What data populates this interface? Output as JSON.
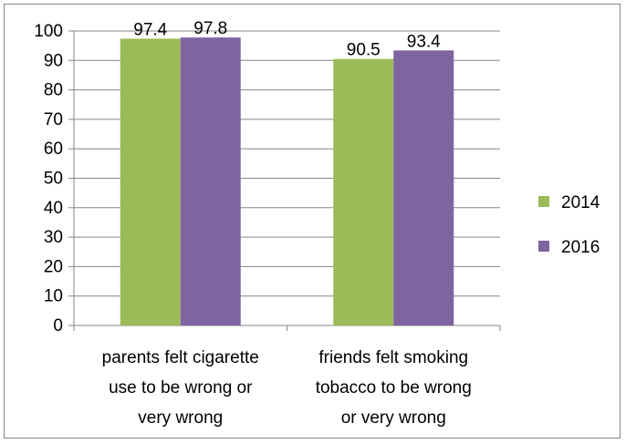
{
  "chart_data": {
    "type": "bar",
    "categories": [
      [
        "parents felt cigarette",
        "use to be wrong or",
        "very wrong"
      ],
      [
        "friends felt smoking",
        "tobacco to be wrong",
        "or very wrong"
      ]
    ],
    "series": [
      {
        "name": "2014",
        "values": [
          97.4,
          90.5
        ],
        "color": "#9BBB59"
      },
      {
        "name": "2016",
        "values": [
          97.8,
          93.4
        ],
        "color": "#8064A2"
      }
    ],
    "data_labels": [
      [
        "97.4",
        "90.5"
      ],
      [
        "97.8",
        "93.4"
      ]
    ],
    "yticks": [
      "0",
      "10",
      "20",
      "30",
      "40",
      "50",
      "60",
      "70",
      "80",
      "90",
      "100"
    ],
    "ylim": [
      0,
      100
    ],
    "grid": true,
    "legend_position": "right",
    "axis_color": "#868686",
    "grid_color": "#868686"
  }
}
